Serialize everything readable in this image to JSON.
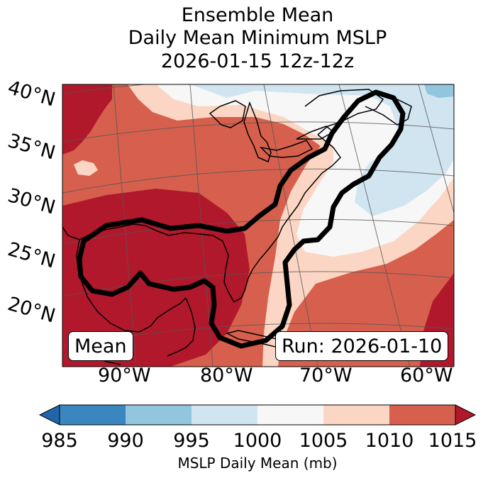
{
  "title": {
    "line1": "Ensemble Mean",
    "line2": "Daily Mean Minimum MSLP",
    "line3": "2026-01-15 12z-12z"
  },
  "map": {
    "lat_labels": [
      "40°N",
      "35°N",
      "30°N",
      "25°N",
      "20°N"
    ],
    "lon_labels": [
      "90°W",
      "80°W",
      "70°W",
      "60°W"
    ],
    "mean_label": "Mean",
    "run_label": "Run: 2026-01-10"
  },
  "colorbar": {
    "ticks": [
      "985",
      "990",
      "995",
      "1000",
      "1005",
      "1010",
      "1015"
    ],
    "label": "MSLP Daily Mean (mb)",
    "colors": [
      "#2166ac",
      "#3a86be",
      "#92c5de",
      "#d1e5f0",
      "#f7f7f7",
      "#fcd6c4",
      "#d6604d",
      "#b2182b"
    ]
  }
}
